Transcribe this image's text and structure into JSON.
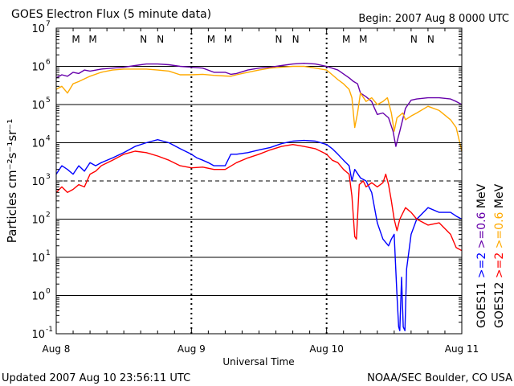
{
  "header": {
    "title": "GOES Electron Flux (5 minute data)",
    "begin": "Begin: 2007 Aug 8 0000 UTC"
  },
  "footer": {
    "updated": "Updated 2007 Aug 10 23:56:11 UTC",
    "credit": "NOAA/SEC Boulder, CO USA"
  },
  "colors": {
    "background": "#ffffff",
    "axis": "#000000",
    "goes11_gt2": "#0000ff",
    "goes11_gt06": "#6600aa",
    "goes12_gt2": "#ff0000",
    "goes12_gt06": "#ffaa00",
    "marker_m_goes12": "#ff0000",
    "marker_m_goes11": "#0000ff"
  },
  "chart_data": {
    "type": "line",
    "title": "GOES Electron Flux (5 minute data)",
    "xlabel": "Universal Time",
    "ylabel": "Particles cm⁻²s⁻¹sr⁻¹",
    "yscale": "log",
    "ylim": [
      0.1,
      10000000
    ],
    "xlim": [
      0,
      72
    ],
    "x_unit": "hours since 2007 Aug 8 0000 UTC",
    "x_ticks": [
      {
        "x": 0,
        "label": "Aug 8"
      },
      {
        "x": 24,
        "label": "Aug 9"
      },
      {
        "x": 48,
        "label": "Aug 10"
      },
      {
        "x": 72,
        "label": "Aug 11"
      }
    ],
    "y_ticks": [
      {
        "base": "10",
        "exp": "-1"
      },
      {
        "base": "10",
        "exp": "0"
      },
      {
        "base": "10",
        "exp": "1"
      },
      {
        "base": "10",
        "exp": "2"
      },
      {
        "base": "10",
        "exp": "3"
      },
      {
        "base": "10",
        "exp": "4"
      },
      {
        "base": "10",
        "exp": "5"
      },
      {
        "base": "10",
        "exp": "6"
      },
      {
        "base": "10",
        "exp": "7"
      }
    ],
    "hlines": [
      {
        "y": 1,
        "style": "solid"
      },
      {
        "y": 10,
        "style": "solid"
      },
      {
        "y": 100,
        "style": "solid"
      },
      {
        "y": 1000,
        "style": "dashed"
      },
      {
        "y": 10000,
        "style": "solid"
      },
      {
        "y": 100000,
        "style": "solid"
      },
      {
        "y": 1000000,
        "style": "solid"
      }
    ],
    "legend": {
      "placement": "right-vertical",
      "satellites": [
        {
          "label": "GOES11",
          "entries": [
            {
              "label": ">=2",
              "color": "#0000ff"
            },
            {
              "label": ">=0.6",
              "color": "#6600aa"
            },
            {
              "label": "MeV",
              "color": "#000000"
            }
          ]
        },
        {
          "label": "GOES12",
          "entries": [
            {
              "label": ">=2",
              "color": "#ff0000"
            },
            {
              "label": ">=0.6",
              "color": "#ffaa00"
            },
            {
              "label": "MeV",
              "color": "#000000"
            }
          ]
        }
      ]
    },
    "markers": [
      {
        "x": 3.5,
        "label": "M",
        "color": "#ff0000"
      },
      {
        "x": 6.5,
        "label": "M",
        "color": "#0000ff"
      },
      {
        "x": 15.5,
        "label": "N",
        "color": "#ff0000"
      },
      {
        "x": 18.5,
        "label": "N",
        "color": "#0000ff"
      },
      {
        "x": 27.5,
        "label": "M",
        "color": "#ff0000"
      },
      {
        "x": 30.5,
        "label": "M",
        "color": "#0000ff"
      },
      {
        "x": 39.5,
        "label": "N",
        "color": "#ff0000"
      },
      {
        "x": 42.5,
        "label": "N",
        "color": "#0000ff"
      },
      {
        "x": 51.5,
        "label": "M",
        "color": "#ff0000"
      },
      {
        "x": 54.5,
        "label": "M",
        "color": "#0000ff"
      },
      {
        "x": 63.5,
        "label": "N",
        "color": "#ff0000"
      },
      {
        "x": 66.5,
        "label": "N",
        "color": "#0000ff"
      }
    ],
    "series": [
      {
        "color": "#6600aa",
        "points": [
          [
            0,
            500000
          ],
          [
            1,
            600000
          ],
          [
            2,
            550000
          ],
          [
            3,
            700000
          ],
          [
            4,
            650000
          ],
          [
            5,
            800000
          ],
          [
            6,
            750000
          ],
          [
            8,
            850000
          ],
          [
            10,
            900000
          ],
          [
            12,
            950000
          ],
          [
            14,
            1050000
          ],
          [
            16,
            1150000
          ],
          [
            18,
            1150000
          ],
          [
            20,
            1100000
          ],
          [
            22,
            1000000
          ],
          [
            24,
            950000
          ],
          [
            26,
            900000
          ],
          [
            28,
            700000
          ],
          [
            30,
            700000
          ],
          [
            31,
            620000
          ],
          [
            32,
            650000
          ],
          [
            34,
            800000
          ],
          [
            36,
            900000
          ],
          [
            38,
            950000
          ],
          [
            40,
            1050000
          ],
          [
            42,
            1150000
          ],
          [
            44,
            1200000
          ],
          [
            46,
            1150000
          ],
          [
            48,
            1000000
          ],
          [
            50,
            800000
          ],
          [
            52,
            500000
          ],
          [
            52.8,
            400000
          ],
          [
            53.5,
            350000
          ],
          [
            54,
            200000
          ],
          [
            55,
            160000
          ],
          [
            56,
            120000
          ],
          [
            56.5,
            80000
          ],
          [
            57,
            55000
          ],
          [
            58,
            60000
          ],
          [
            59,
            45000
          ],
          [
            59.8,
            20000
          ],
          [
            60.3,
            8000
          ],
          [
            61,
            20000
          ],
          [
            62,
            80000
          ],
          [
            63,
            130000
          ],
          [
            64,
            140000
          ],
          [
            66,
            150000
          ],
          [
            68,
            150000
          ],
          [
            70,
            140000
          ],
          [
            71,
            120000
          ],
          [
            72,
            100000
          ]
        ]
      },
      {
        "color": "#ffaa00",
        "points": [
          [
            0,
            250000
          ],
          [
            1,
            300000
          ],
          [
            2,
            200000
          ],
          [
            3,
            350000
          ],
          [
            4,
            400000
          ],
          [
            6,
            550000
          ],
          [
            8,
            700000
          ],
          [
            10,
            800000
          ],
          [
            12,
            850000
          ],
          [
            14,
            850000
          ],
          [
            16,
            850000
          ],
          [
            18,
            800000
          ],
          [
            20,
            750000
          ],
          [
            22,
            600000
          ],
          [
            24,
            600000
          ],
          [
            26,
            620000
          ],
          [
            28,
            580000
          ],
          [
            30,
            560000
          ],
          [
            31,
            550000
          ],
          [
            32,
            600000
          ],
          [
            34,
            700000
          ],
          [
            36,
            800000
          ],
          [
            38,
            900000
          ],
          [
            40,
            950000
          ],
          [
            42,
            1000000
          ],
          [
            44,
            1000000
          ],
          [
            46,
            900000
          ],
          [
            48,
            800000
          ],
          [
            49,
            600000
          ],
          [
            50,
            450000
          ],
          [
            51,
            350000
          ],
          [
            52,
            250000
          ],
          [
            52.5,
            150000
          ],
          [
            53,
            25000
          ],
          [
            53.5,
            60000
          ],
          [
            54,
            200000
          ],
          [
            55,
            120000
          ],
          [
            56,
            150000
          ],
          [
            57,
            100000
          ],
          [
            58,
            120000
          ],
          [
            58.8,
            150000
          ],
          [
            59.5,
            60000
          ],
          [
            60,
            20000
          ],
          [
            60.5,
            45000
          ],
          [
            61.5,
            60000
          ],
          [
            62,
            40000
          ],
          [
            63,
            50000
          ],
          [
            64,
            60000
          ],
          [
            66,
            90000
          ],
          [
            68,
            70000
          ],
          [
            70,
            40000
          ],
          [
            71,
            25000
          ],
          [
            72,
            6000
          ]
        ]
      },
      {
        "color": "#0000ff",
        "points": [
          [
            0,
            1500
          ],
          [
            1,
            2500
          ],
          [
            2,
            2000
          ],
          [
            3,
            1500
          ],
          [
            4,
            2500
          ],
          [
            5,
            1800
          ],
          [
            6,
            3000
          ],
          [
            7,
            2500
          ],
          [
            8,
            3000
          ],
          [
            10,
            4000
          ],
          [
            12,
            5500
          ],
          [
            14,
            8000
          ],
          [
            16,
            10000
          ],
          [
            18,
            12000
          ],
          [
            20,
            10000
          ],
          [
            22,
            7000
          ],
          [
            24,
            5000
          ],
          [
            25,
            4000
          ],
          [
            26,
            3500
          ],
          [
            27,
            3000
          ],
          [
            28,
            2500
          ],
          [
            29,
            2500
          ],
          [
            30,
            2500
          ],
          [
            31,
            5000
          ],
          [
            32,
            5000
          ],
          [
            34,
            5500
          ],
          [
            36,
            6500
          ],
          [
            38,
            7500
          ],
          [
            40,
            9500
          ],
          [
            42,
            11000
          ],
          [
            44,
            11500
          ],
          [
            46,
            11000
          ],
          [
            48,
            9000
          ],
          [
            49,
            7000
          ],
          [
            50,
            5000
          ],
          [
            51,
            3500
          ],
          [
            52,
            2500
          ],
          [
            52.5,
            1000
          ],
          [
            53,
            2000
          ],
          [
            54,
            1200
          ],
          [
            55,
            1000
          ],
          [
            56,
            500
          ],
          [
            57,
            80
          ],
          [
            58,
            30
          ],
          [
            59,
            20
          ],
          [
            59.5,
            30
          ],
          [
            60,
            40
          ],
          [
            60.5,
            1
          ],
          [
            60.8,
            0.15
          ],
          [
            61,
            0.12
          ],
          [
            61.3,
            3
          ],
          [
            61.6,
            0.15
          ],
          [
            61.9,
            0.12
          ],
          [
            62.2,
            5
          ],
          [
            63,
            40
          ],
          [
            64,
            100
          ],
          [
            66,
            200
          ],
          [
            68,
            150
          ],
          [
            70,
            150
          ],
          [
            71,
            120
          ],
          [
            72,
            100
          ]
        ]
      },
      {
        "color": "#ff0000",
        "points": [
          [
            0,
            500
          ],
          [
            1,
            700
          ],
          [
            2,
            500
          ],
          [
            3,
            600
          ],
          [
            4,
            800
          ],
          [
            5,
            700
          ],
          [
            6,
            1500
          ],
          [
            7,
            1800
          ],
          [
            8,
            2500
          ],
          [
            10,
            3500
          ],
          [
            12,
            5000
          ],
          [
            14,
            6000
          ],
          [
            16,
            5500
          ],
          [
            18,
            4500
          ],
          [
            20,
            3500
          ],
          [
            22,
            2500
          ],
          [
            24,
            2200
          ],
          [
            26,
            2300
          ],
          [
            28,
            2000
          ],
          [
            30,
            2000
          ],
          [
            32,
            3000
          ],
          [
            34,
            4000
          ],
          [
            36,
            5000
          ],
          [
            38,
            6500
          ],
          [
            40,
            8000
          ],
          [
            42,
            9000
          ],
          [
            44,
            8000
          ],
          [
            46,
            7000
          ],
          [
            48,
            5000
          ],
          [
            49,
            3500
          ],
          [
            50,
            3000
          ],
          [
            51,
            2000
          ],
          [
            52,
            1500
          ],
          [
            52.5,
            400
          ],
          [
            53,
            35
          ],
          [
            53.3,
            30
          ],
          [
            53.8,
            800
          ],
          [
            54.5,
            1000
          ],
          [
            55,
            700
          ],
          [
            56,
            900
          ],
          [
            57,
            700
          ],
          [
            58,
            900
          ],
          [
            58.5,
            1500
          ],
          [
            59,
            800
          ],
          [
            59.5,
            300
          ],
          [
            60,
            100
          ],
          [
            60.5,
            50
          ],
          [
            61,
            100
          ],
          [
            62,
            200
          ],
          [
            63,
            150
          ],
          [
            64,
            100
          ],
          [
            66,
            70
          ],
          [
            68,
            80
          ],
          [
            70,
            40
          ],
          [
            71,
            18
          ],
          [
            72,
            15
          ]
        ]
      }
    ]
  }
}
